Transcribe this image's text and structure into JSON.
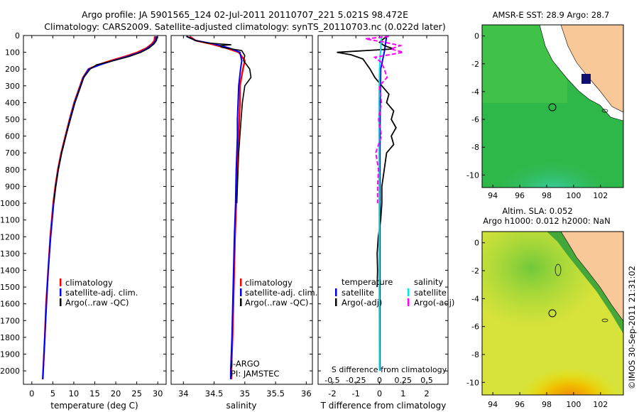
{
  "header": {
    "title_line1": "Argo profile: JA 5901565_124 02-Jul-2011 20110707_221 5.021S 98.472E",
    "title_line2": "Climatology: CARS2009. Satellite-adjusted climatology: synTS_20110703.nc (0.022d later)"
  },
  "colors": {
    "climatology": "#ff0000",
    "satellite": "#0000ff",
    "argo": "#000000",
    "salinity_satellite": "#00e5e5",
    "salinity_argo": "#ff00ff",
    "land": "#f8c898",
    "ocean_green": "#2eb84a",
    "ocean_yellow": "#e9e400",
    "float_marker": "#101070"
  },
  "depth_axis": {
    "ticks": [
      "0",
      "100",
      "200",
      "300",
      "400",
      "500",
      "600",
      "700",
      "800",
      "900",
      "1000",
      "1100",
      "1200",
      "1300",
      "1400",
      "1500",
      "1600",
      "1700",
      "1800",
      "1900",
      "2000"
    ]
  },
  "chart_data": [
    {
      "type": "line",
      "id": "temperature",
      "xlabel": "temperature (deg C)",
      "xlim": [
        -2,
        32
      ],
      "ylim": [
        0,
        2080
      ],
      "x_ticks": [
        "0",
        "5",
        "10",
        "15",
        "20",
        "25",
        "30"
      ],
      "legend": [
        "climatology",
        "satellite-adj. clim.",
        "Argo(..raw -QC)"
      ],
      "series": [
        {
          "name": "climatology",
          "depth": [
            5,
            30,
            50,
            75,
            100,
            125,
            150,
            175,
            200,
            250,
            300,
            400,
            500,
            600,
            700,
            800,
            900,
            1000,
            1200,
            1400,
            1600,
            1800,
            2000,
            2050
          ],
          "values": [
            29.3,
            29.2,
            28.6,
            27.3,
            25.2,
            22.2,
            18.8,
            15.8,
            13.5,
            12.2,
            11.5,
            10.1,
            9.0,
            8.0,
            7.0,
            6.2,
            5.6,
            5.1,
            4.4,
            3.9,
            3.4,
            3.1,
            2.7,
            2.6
          ]
        },
        {
          "name": "satellite-adj. clim.",
          "depth": [
            5,
            30,
            50,
            75,
            100,
            125,
            150,
            175,
            200,
            250,
            300,
            400,
            500,
            600,
            700,
            800,
            900,
            1000,
            1200,
            1400,
            1600,
            1800,
            2000,
            2050
          ],
          "values": [
            29.6,
            29.5,
            28.9,
            27.6,
            25.8,
            22.8,
            19.3,
            16.2,
            13.6,
            12.3,
            11.6,
            10.2,
            9.1,
            8.1,
            7.1,
            6.3,
            5.7,
            5.2,
            4.5,
            3.9,
            3.5,
            3.1,
            2.7,
            2.6
          ]
        },
        {
          "name": "Argo(..raw -QC)",
          "depth": [
            5,
            30,
            50,
            75,
            100,
            125,
            150,
            175,
            200,
            250,
            300,
            400,
            500,
            600,
            700,
            800,
            900,
            1000
          ],
          "values": [
            29.9,
            29.7,
            29.1,
            27.9,
            26.0,
            23.2,
            19.5,
            15.4,
            13.9,
            12.4,
            11.7,
            10.3,
            9.2,
            8.1,
            7.1,
            6.3,
            5.7,
            5.2
          ]
        }
      ]
    },
    {
      "type": "line",
      "id": "salinity",
      "xlabel": "salinity",
      "xlim": [
        33.8,
        36.1
      ],
      "ylim": [
        0,
        2080
      ],
      "x_ticks": [
        "34",
        "34.5",
        "35",
        "35.5",
        "36"
      ],
      "legend": [
        "climatology",
        "satellite-adj. clim.",
        "Argo(..raw -QC)"
      ],
      "annotation": [
        "J-ARGO",
        "PI: JAMSTEC"
      ],
      "series": [
        {
          "name": "climatology",
          "depth": [
            5,
            30,
            50,
            75,
            100,
            150,
            200,
            300,
            400,
            500,
            600,
            800,
            1000,
            1200,
            1500,
            1800,
            2000,
            2050
          ],
          "values": [
            34.1,
            34.2,
            34.45,
            34.7,
            34.9,
            35.0,
            34.97,
            34.92,
            34.92,
            34.91,
            34.9,
            34.88,
            34.86,
            34.84,
            34.82,
            34.8,
            34.78,
            34.78
          ]
        },
        {
          "name": "satellite-adj. clim.",
          "depth": [
            5,
            30,
            50,
            75,
            100,
            150,
            200,
            300,
            400,
            500,
            600,
            800,
            1000,
            1200,
            1500,
            1800,
            2000,
            2050
          ],
          "values": [
            34.05,
            34.2,
            34.5,
            34.75,
            34.92,
            34.95,
            34.93,
            34.9,
            34.89,
            34.88,
            34.88,
            34.86,
            34.85,
            34.83,
            34.81,
            34.79,
            34.77,
            34.77
          ]
        },
        {
          "name": "Argo(..raw -QC)",
          "depth": [
            5,
            30,
            45,
            55,
            60,
            70,
            90,
            120,
            150,
            200,
            250,
            300,
            400,
            500,
            600,
            700,
            800,
            900,
            1000
          ],
          "values": [
            34.05,
            34.2,
            34.4,
            34.78,
            34.6,
            34.62,
            34.95,
            35.0,
            34.98,
            35.08,
            35.1,
            35.0,
            34.96,
            34.94,
            34.92,
            34.9,
            34.89,
            34.88,
            34.87
          ]
        }
      ]
    },
    {
      "type": "line",
      "id": "difference",
      "xlabel": "T difference from climatology",
      "xlabel_top": "S difference from climatology",
      "xlim": [
        -2.6,
        2.9
      ],
      "ylim": [
        0,
        2080
      ],
      "x_ticks": [
        "-2",
        "-1",
        "0",
        "1",
        "2"
      ],
      "x_ticks_top": [
        "-0.5",
        "-0.25",
        "0",
        "0.25",
        "0.5"
      ],
      "legend_headers": [
        "temperature",
        "salinity"
      ],
      "legend": [
        "satellite",
        "Argo(-adj)",
        "satellite",
        "Argo(-adj)"
      ],
      "series": [
        {
          "name": "T satellite",
          "depth": [
            5,
            100,
            200,
            400,
            700,
            1000,
            1500,
            2000
          ],
          "values": [
            0.3,
            0.2,
            0.05,
            0.03,
            0.02,
            0.02,
            0.02,
            0.02
          ]
        },
        {
          "name": "T Argo(-adj)",
          "depth": [
            5,
            40,
            60,
            80,
            100,
            115,
            125,
            140,
            160,
            200,
            250,
            300,
            350,
            400,
            450,
            500,
            550,
            600,
            650,
            700,
            800,
            900,
            1000,
            1100,
            1200,
            1300,
            1400,
            1500
          ],
          "values": [
            0.3,
            0.0,
            0.2,
            0.6,
            -1.8,
            -1.2,
            -1.0,
            -0.7,
            -0.6,
            -0.4,
            -0.2,
            0.1,
            0.4,
            0.3,
            0.6,
            0.5,
            0.7,
            0.5,
            0.6,
            0.3,
            0.2,
            0.1,
            0.1,
            0.05,
            -0.05,
            -0.1,
            -0.08,
            -0.1
          ]
        },
        {
          "name": "S satellite",
          "depth": [
            5,
            100,
            200,
            400,
            700,
            1000,
            1500,
            2000
          ],
          "values": [
            0.02,
            0.01,
            0.0,
            -0.005,
            -0.005,
            -0.003,
            -0.003,
            0.0
          ]
        },
        {
          "name": "S Argo(-adj)",
          "depth": [
            5,
            20,
            40,
            60,
            80,
            100,
            130,
            160,
            200,
            250,
            300,
            400,
            500,
            600,
            700,
            800,
            900,
            1000
          ],
          "values": [
            0.1,
            -0.15,
            0.05,
            0.22,
            0.12,
            0.25,
            -0.05,
            0.02,
            0.05,
            0.08,
            0.0,
            0.02,
            -0.01,
            0.02,
            -0.04,
            -0.01,
            -0.02,
            -0.02
          ]
        }
      ]
    }
  ],
  "maps": {
    "top": {
      "title": "AMSR-E SST: 28.9 Argo: 28.7",
      "x_ticks": [
        "94",
        "96",
        "98",
        "100",
        "102"
      ],
      "y_ticks": [
        "0",
        "-2",
        "-4",
        "-6",
        "-8",
        "-10"
      ]
    },
    "bottom": {
      "title_line1": "Altim. SLA: 0.052",
      "title_line2": "Argo h1000: 0.012 h2000: NaN",
      "x_ticks": [
        "94",
        "96",
        "98",
        "100",
        "102"
      ],
      "y_ticks": [
        "0",
        "-2",
        "-4",
        "-6",
        "-8",
        "-10"
      ]
    }
  },
  "watermark": "©IMOS 30-Sep-2011 21:31:02"
}
